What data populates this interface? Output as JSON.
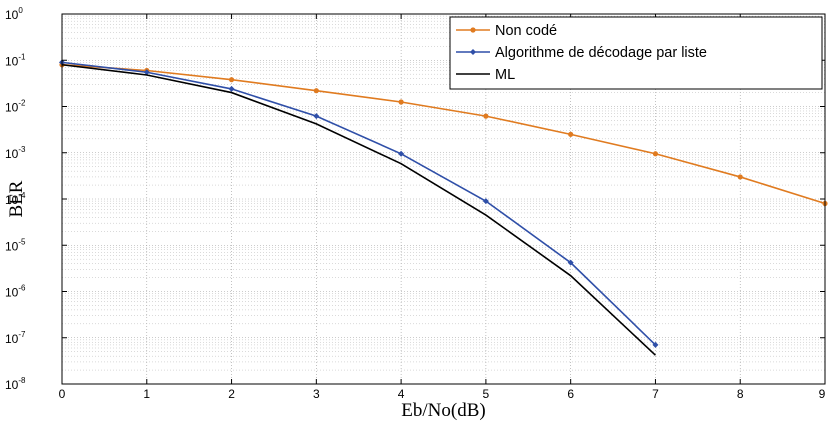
{
  "chart_data": {
    "type": "line",
    "title": "",
    "xlabel": "Eb/No(dB)",
    "ylabel": "BER",
    "xlim": [
      0,
      9
    ],
    "ylim": [
      1e-08,
      1
    ],
    "yscale": "log",
    "grid": true,
    "legend_position": "top-right",
    "x_ticks": [
      "0",
      "1",
      "2",
      "3",
      "4",
      "5",
      "6",
      "7",
      "8",
      "9"
    ],
    "y_ticks": [
      {
        "base": "10",
        "exp": "-8"
      },
      {
        "base": "10",
        "exp": "-7"
      },
      {
        "base": "10",
        "exp": "-6"
      },
      {
        "base": "10",
        "exp": "-5"
      },
      {
        "base": "10",
        "exp": "-4"
      },
      {
        "base": "10",
        "exp": "-3"
      },
      {
        "base": "10",
        "exp": "-2"
      },
      {
        "base": "10",
        "exp": "-1"
      },
      {
        "base": "10",
        "exp": "0"
      }
    ],
    "series": [
      {
        "name": "Non codé",
        "color": "#e07b20",
        "marker": "circle",
        "x": [
          0,
          1,
          2,
          3,
          4,
          5,
          6,
          7,
          8,
          9
        ],
        "y": [
          0.08,
          0.06,
          0.038,
          0.022,
          0.0125,
          0.0062,
          0.0025,
          0.00095,
          0.0003,
          8e-05
        ]
      },
      {
        "name": "Algorithme de décodage par liste",
        "color": "#2f4fa8",
        "marker": "diamond",
        "x": [
          0,
          1,
          2,
          3,
          4,
          5,
          6,
          7
        ],
        "y": [
          0.09,
          0.055,
          0.024,
          0.0062,
          0.00095,
          9e-05,
          4.2e-06,
          7e-08
        ]
      },
      {
        "name": "ML",
        "color": "#000000",
        "marker": "none",
        "x": [
          0,
          1,
          2,
          3,
          4,
          5,
          6,
          7
        ],
        "y": [
          0.08,
          0.048,
          0.02,
          0.0042,
          0.00058,
          4.5e-05,
          2.2e-06,
          4.2e-08
        ]
      }
    ]
  }
}
